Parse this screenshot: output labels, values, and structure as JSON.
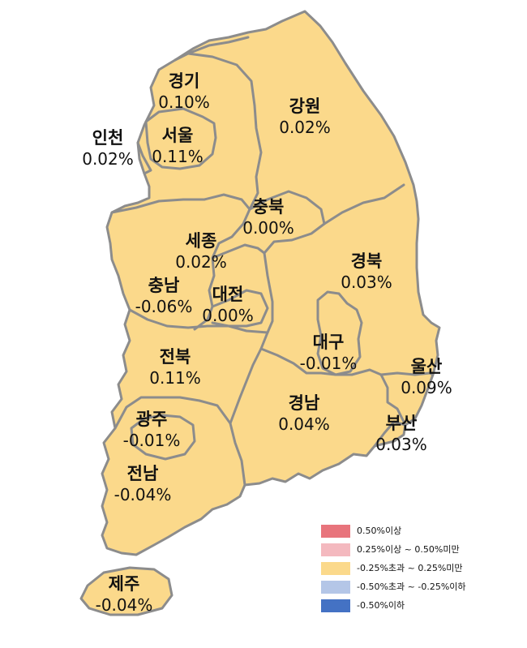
{
  "regions": [
    {
      "id": "gyeonggi",
      "name": "경기",
      "value": "0.10%"
    },
    {
      "id": "seoul",
      "name": "서울",
      "value": "0.11%"
    },
    {
      "id": "incheon",
      "name": "인천",
      "value": "0.02%"
    },
    {
      "id": "gangwon",
      "name": "강원",
      "value": "0.02%"
    },
    {
      "id": "chungbuk",
      "name": "충북",
      "value": "0.00%"
    },
    {
      "id": "sejong",
      "name": "세종",
      "value": "0.02%"
    },
    {
      "id": "chungnam",
      "name": "충남",
      "value": "-0.06%"
    },
    {
      "id": "daejeon",
      "name": "대전",
      "value": "0.00%"
    },
    {
      "id": "gyeongbuk",
      "name": "경북",
      "value": "0.03%"
    },
    {
      "id": "daegu",
      "name": "대구",
      "value": "-0.01%"
    },
    {
      "id": "ulsan",
      "name": "울산",
      "value": "0.09%"
    },
    {
      "id": "jeonbuk",
      "name": "전북",
      "value": "0.11%"
    },
    {
      "id": "gyeongnam",
      "name": "경남",
      "value": "0.04%"
    },
    {
      "id": "busan",
      "name": "부산",
      "value": "0.03%"
    },
    {
      "id": "gwangju",
      "name": "광주",
      "value": "-0.01%"
    },
    {
      "id": "jeonnam",
      "name": "전남",
      "value": "-0.04%"
    },
    {
      "id": "jeju",
      "name": "제주",
      "value": "-0.04%"
    }
  ],
  "legend": [
    {
      "color": "#e8747c",
      "label": "0.50%이상"
    },
    {
      "color": "#f4b9bf",
      "label": "0.25%이상 ~ 0.50%미만"
    },
    {
      "color": "#fbd98b",
      "label": "-0.25%초과 ~ 0.25%미만"
    },
    {
      "color": "#b4c6e7",
      "label": "-0.50%초과 ~ -0.25%이하"
    },
    {
      "color": "#4472c4",
      "label": "-0.50%이하"
    }
  ],
  "fill_color": "#fbd98b"
}
